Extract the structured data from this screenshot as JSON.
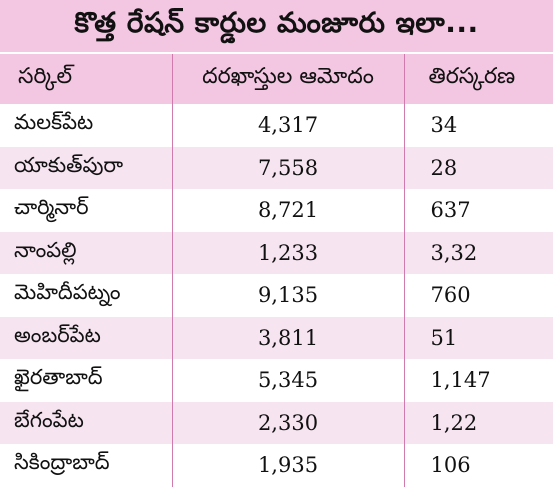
{
  "title": "కొత్త రేషన్‌ కార్డుల మంజూరు ఇలా...",
  "headers": {
    "circle": "సర్కిల్‌",
    "applications": "దరఖాస్తుల ఆమోదం",
    "rejections": "తిరస్కరణ"
  },
  "rows": [
    {
      "circle": "మలక్‌పేట",
      "applications": "4,317",
      "rejections": "34"
    },
    {
      "circle": "యాకుత్‌పురా",
      "applications": "7,558",
      "rejections": "28"
    },
    {
      "circle": "చార్మినార్‌",
      "applications": "8,721",
      "rejections": "637"
    },
    {
      "circle": "నాంపల్లి",
      "applications": "1,233",
      "rejections": "3,32"
    },
    {
      "circle": "మెహిదీపట్నం",
      "applications": "9,135",
      "rejections": "760"
    },
    {
      "circle": "అంబర్‌పేట",
      "applications": "3,811",
      "rejections": "51"
    },
    {
      "circle": "ఖైరతాబాద్‌",
      "applications": "5,345",
      "rejections": "1,147"
    },
    {
      "circle": "బేగంపేట",
      "applications": "2,330",
      "rejections": "1,22"
    },
    {
      "circle": "సికింద్రాబాద్‌",
      "applications": "1,935",
      "rejections": "106"
    }
  ],
  "colors": {
    "header_background": "#f3c6e1",
    "alternate_row": "#f6e4f0",
    "divider": "#d07aae"
  }
}
